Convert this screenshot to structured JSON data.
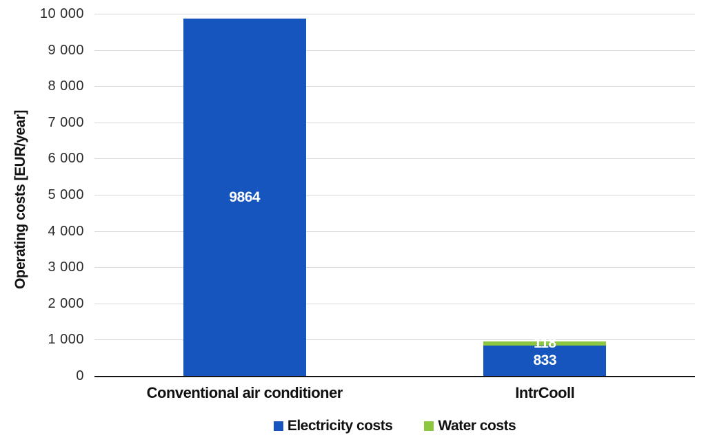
{
  "chart_data": {
    "type": "bar",
    "stacked": true,
    "title": "",
    "xlabel": "",
    "ylabel": "Operating costs [EUR/year]",
    "ylim": [
      0,
      10000
    ],
    "ytick_interval": 1000,
    "ytick_labels": [
      "10 000",
      "9 000",
      "8 000",
      "7 000",
      "6 000",
      "5 000",
      "4 000",
      "3 000",
      "2 000",
      "1 000",
      "0"
    ],
    "grid": true,
    "legend_position": "bottom",
    "categories": [
      "Conventional air conditioner",
      "IntrCooll"
    ],
    "series": [
      {
        "name": "Electricity costs",
        "color": "#1555bd",
        "values": [
          9864,
          833
        ],
        "labels": [
          "9864",
          "833"
        ]
      },
      {
        "name": "Water costs",
        "color": "#8dc63f",
        "values": [
          0,
          118
        ],
        "labels": [
          "",
          "118"
        ]
      }
    ],
    "colors": {
      "axis_line": "#141414",
      "gridline": "#d9d9d9",
      "tick_text": "#2b2b2b",
      "bar_label_text": "#ffffff"
    }
  }
}
